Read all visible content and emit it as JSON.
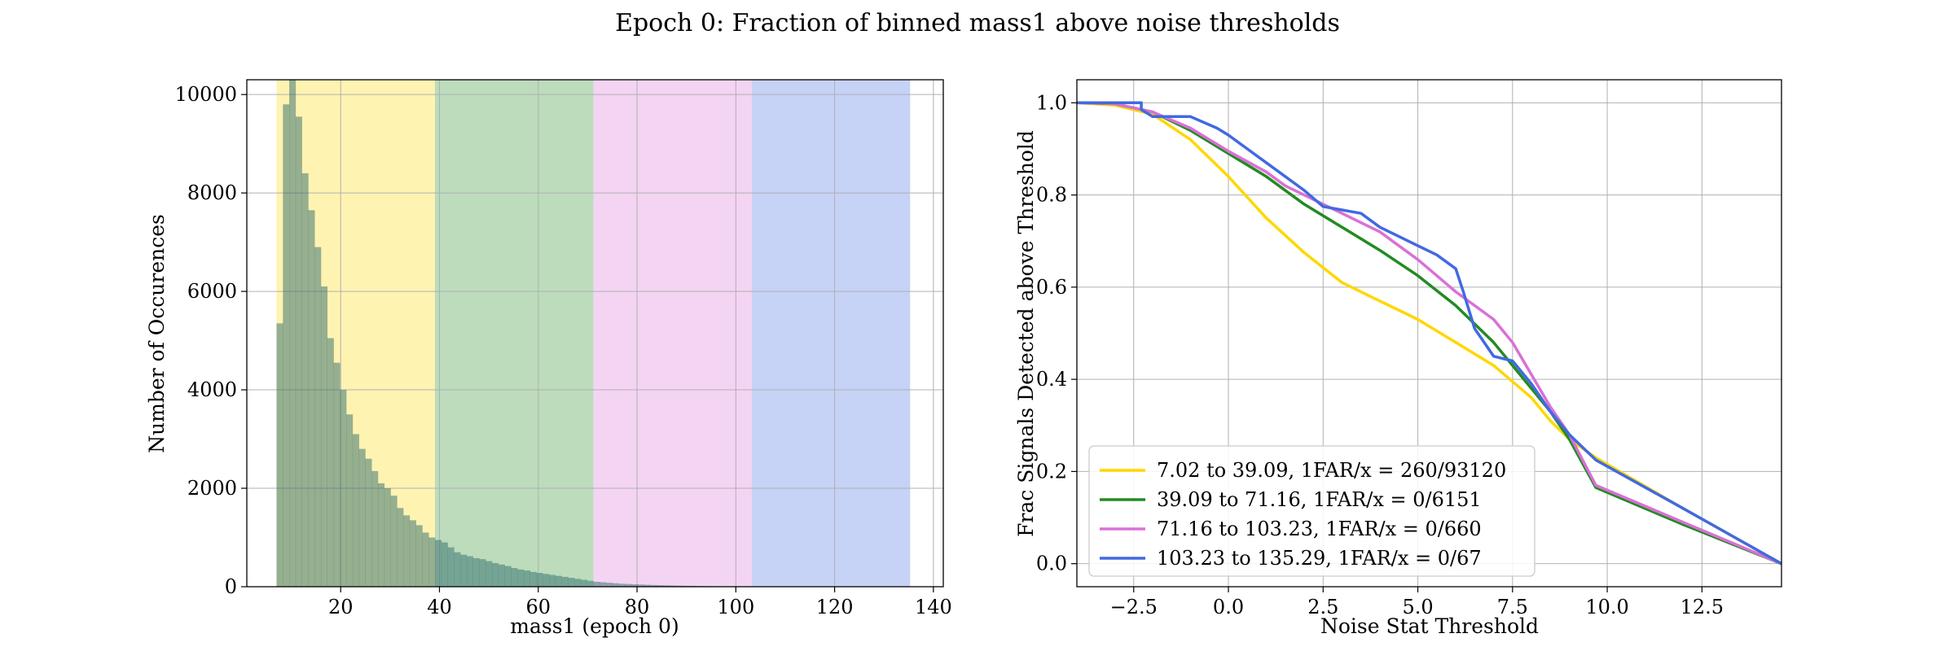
{
  "figure": {
    "title": "Epoch 0: Fraction of binned mass1 above noise thresholds"
  },
  "chart_data": [
    {
      "type": "bar",
      "subtype": "histogram",
      "xlabel": "mass1 (epoch 0)",
      "ylabel": "Number of Occurences",
      "xlim": [
        1,
        142
      ],
      "ylim": [
        0,
        10300
      ],
      "xticks": [
        20,
        40,
        60,
        80,
        100,
        120,
        140
      ],
      "yticks": [
        0,
        2000,
        4000,
        6000,
        8000,
        10000
      ],
      "grid": true,
      "bands": [
        {
          "from": 7.02,
          "to": 39.09,
          "color": "#FFD700"
        },
        {
          "from": 39.09,
          "to": 71.16,
          "color": "#228B22"
        },
        {
          "from": 71.16,
          "to": 103.23,
          "color": "#DA70D6"
        },
        {
          "from": 103.23,
          "to": 135.29,
          "color": "#4169E1"
        }
      ],
      "bar_color": "#2E6B6B",
      "bin_start": 7.02,
      "bin_width": 1.283,
      "counts": [
        5350,
        9800,
        10300,
        9550,
        8400,
        7650,
        6900,
        6100,
        5050,
        4550,
        4000,
        3500,
        3100,
        2800,
        2600,
        2350,
        2100,
        2000,
        1850,
        1600,
        1450,
        1350,
        1250,
        1100,
        1000,
        950,
        900,
        800,
        700,
        650,
        620,
        580,
        560,
        520,
        480,
        450,
        420,
        380,
        350,
        330,
        300,
        280,
        260,
        240,
        220,
        200,
        180,
        160,
        140,
        120,
        100,
        90,
        80,
        70,
        60,
        55,
        50,
        45,
        40,
        35,
        32,
        28,
        25,
        22,
        20,
        18,
        15,
        13,
        11,
        10,
        8,
        7,
        6,
        5,
        5,
        4,
        4,
        3,
        3,
        2,
        2,
        2,
        1,
        1,
        1,
        1,
        1,
        1,
        1,
        1,
        0,
        0,
        0,
        0,
        0,
        0,
        0,
        0,
        0,
        0
      ]
    },
    {
      "type": "line",
      "xlabel": "Noise Stat Threshold",
      "ylabel": "Frac Signals Detected above Threshold",
      "xlim": [
        -4.0,
        14.6
      ],
      "ylim": [
        -0.05,
        1.05
      ],
      "xticks": [
        -2.5,
        0.0,
        2.5,
        5.0,
        7.5,
        10.0,
        12.5
      ],
      "xtick_labels": [
        "−2.5",
        "0.0",
        "2.5",
        "5.0",
        "7.5",
        "10.0",
        "12.5"
      ],
      "yticks": [
        0.0,
        0.2,
        0.4,
        0.6,
        0.8,
        1.0
      ],
      "ytick_labels": [
        "0.0",
        "0.2",
        "0.4",
        "0.6",
        "0.8",
        "1.0"
      ],
      "grid": true,
      "legend_position": "lower-left",
      "series": [
        {
          "name": "7.02 to 39.09, 1FAR/x = 260/93120",
          "color": "#FFD700",
          "points": [
            [
              -4.0,
              1.0
            ],
            [
              -3.0,
              0.995
            ],
            [
              -2.0,
              0.975
            ],
            [
              -1.0,
              0.92
            ],
            [
              0.0,
              0.84
            ],
            [
              1.0,
              0.75
            ],
            [
              2.0,
              0.675
            ],
            [
              3.0,
              0.61
            ],
            [
              4.0,
              0.57
            ],
            [
              5.0,
              0.53
            ],
            [
              6.0,
              0.48
            ],
            [
              7.0,
              0.43
            ],
            [
              8.0,
              0.36
            ],
            [
              8.5,
              0.31
            ],
            [
              9.0,
              0.27
            ],
            [
              9.7,
              0.23
            ],
            [
              12.0,
              0.12
            ],
            [
              14.6,
              0.0
            ]
          ]
        },
        {
          "name": "39.09 to 71.16, 1FAR/x = 0/6151",
          "color": "#228B22",
          "points": [
            [
              -4.0,
              1.0
            ],
            [
              -3.0,
              0.998
            ],
            [
              -2.0,
              0.98
            ],
            [
              -1.0,
              0.94
            ],
            [
              0.0,
              0.89
            ],
            [
              1.0,
              0.84
            ],
            [
              2.0,
              0.78
            ],
            [
              3.0,
              0.73
            ],
            [
              4.0,
              0.68
            ],
            [
              5.0,
              0.625
            ],
            [
              6.0,
              0.56
            ],
            [
              7.0,
              0.48
            ],
            [
              8.0,
              0.38
            ],
            [
              8.5,
              0.33
            ],
            [
              9.0,
              0.27
            ],
            [
              9.7,
              0.165
            ],
            [
              12.0,
              0.085
            ],
            [
              14.6,
              0.0
            ]
          ]
        },
        {
          "name": "71.16 to 103.23, 1FAR/x = 0/660",
          "color": "#DA70D6",
          "points": [
            [
              -4.0,
              1.0
            ],
            [
              -3.0,
              0.998
            ],
            [
              -2.0,
              0.98
            ],
            [
              -1.0,
              0.945
            ],
            [
              0.0,
              0.895
            ],
            [
              1.0,
              0.85
            ],
            [
              1.5,
              0.82
            ],
            [
              2.0,
              0.8
            ],
            [
              3.0,
              0.76
            ],
            [
              4.0,
              0.72
            ],
            [
              5.0,
              0.66
            ],
            [
              6.0,
              0.59
            ],
            [
              7.0,
              0.53
            ],
            [
              7.5,
              0.48
            ],
            [
              8.0,
              0.41
            ],
            [
              8.5,
              0.34
            ],
            [
              9.0,
              0.28
            ],
            [
              9.7,
              0.17
            ],
            [
              12.0,
              0.09
            ],
            [
              14.6,
              0.0
            ]
          ]
        },
        {
          "name": "103.23 to 135.29, 1FAR/x = 0/67",
          "color": "#4169E1",
          "points": [
            [
              -4.0,
              1.0
            ],
            [
              -2.3,
              1.0
            ],
            [
              -2.3,
              0.985
            ],
            [
              -2.0,
              0.97
            ],
            [
              -1.0,
              0.97
            ],
            [
              -0.3,
              0.945
            ],
            [
              0.0,
              0.93
            ],
            [
              0.5,
              0.9
            ],
            [
              1.0,
              0.87
            ],
            [
              1.5,
              0.84
            ],
            [
              2.0,
              0.81
            ],
            [
              2.5,
              0.775
            ],
            [
              3.5,
              0.76
            ],
            [
              4.0,
              0.73
            ],
            [
              4.5,
              0.71
            ],
            [
              5.0,
              0.69
            ],
            [
              5.5,
              0.67
            ],
            [
              6.0,
              0.64
            ],
            [
              6.2,
              0.59
            ],
            [
              6.5,
              0.51
            ],
            [
              7.0,
              0.45
            ],
            [
              7.5,
              0.44
            ],
            [
              8.0,
              0.39
            ],
            [
              8.5,
              0.33
            ],
            [
              9.0,
              0.28
            ],
            [
              9.7,
              0.225
            ],
            [
              12.0,
              0.12
            ],
            [
              14.6,
              0.0
            ]
          ]
        }
      ]
    }
  ]
}
